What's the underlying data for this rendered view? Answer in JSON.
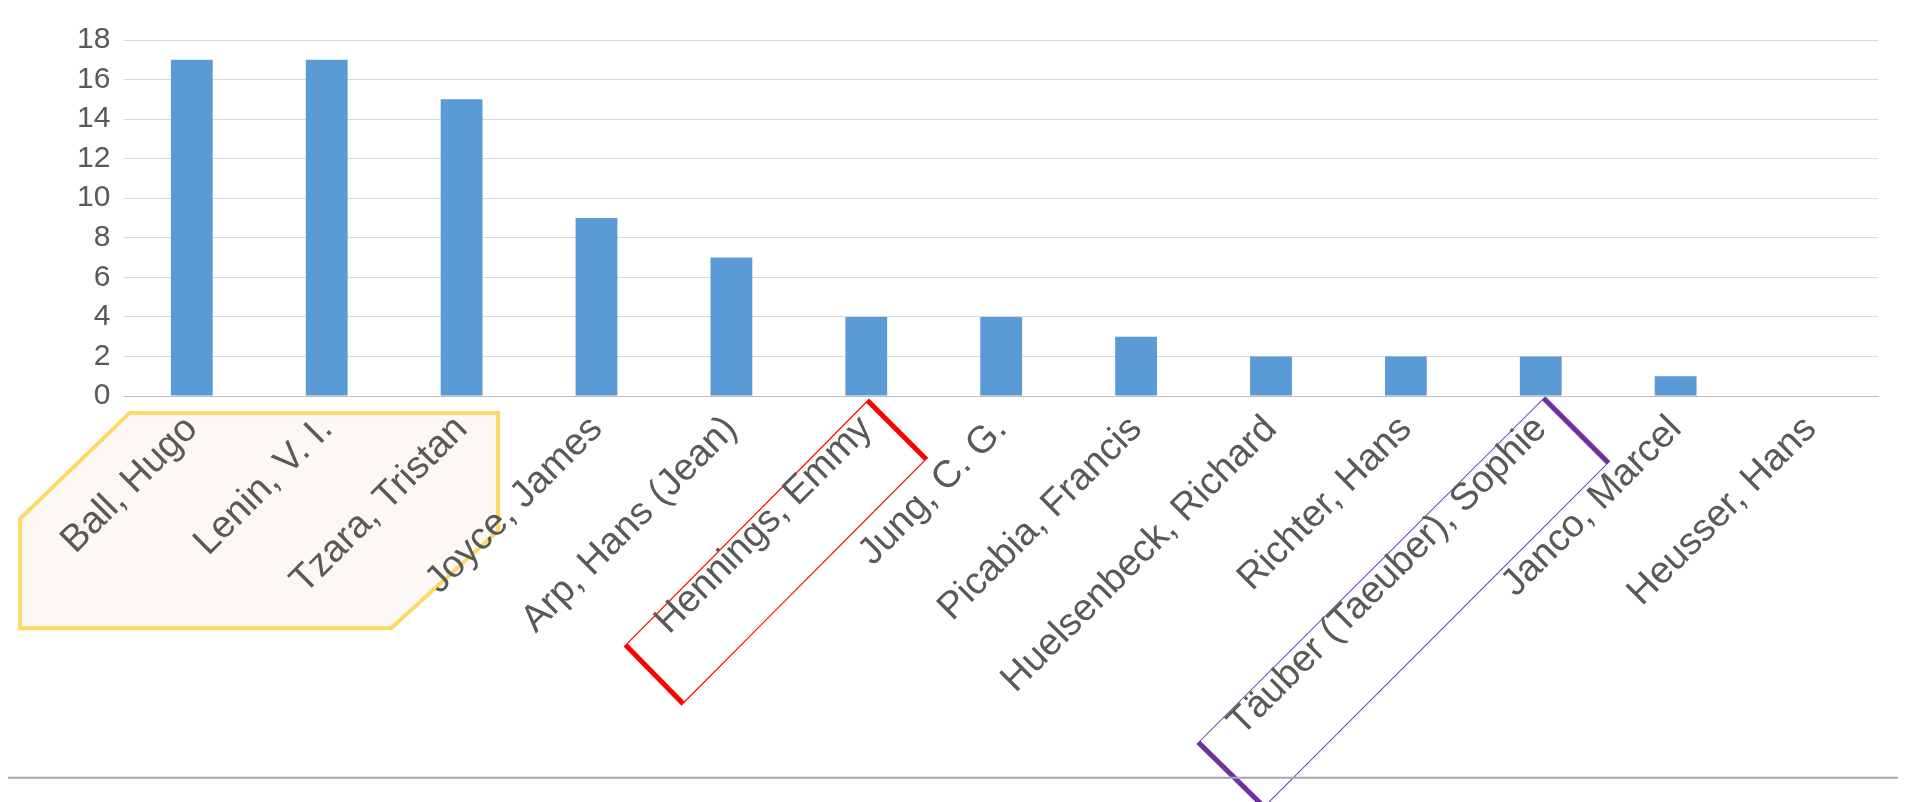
{
  "chart_data": {
    "type": "bar",
    "categories": [
      "Ball, Hugo",
      "Lenin, V. I.",
      "Tzara, Tristan",
      "Joyce, James",
      "Arp, Hans (Jean)",
      "Hennings, Emmy",
      "Jung, C. G.",
      "Picabia, Francis",
      "Huelsenbeck, Richard",
      "Richter, Hans",
      "Täuber (Taeuber), Sophie",
      "Janco, Marcel",
      "Heusser, Hans"
    ],
    "values": [
      17,
      17,
      15,
      9,
      7,
      4,
      4,
      3,
      2,
      2,
      2,
      1,
      0
    ],
    "color": "#5b9bd5",
    "ylim": [
      0,
      18
    ],
    "yticks": [
      0,
      2,
      4,
      6,
      8,
      10,
      12,
      14,
      16,
      18
    ],
    "grid": "y",
    "legend": false
  }
}
